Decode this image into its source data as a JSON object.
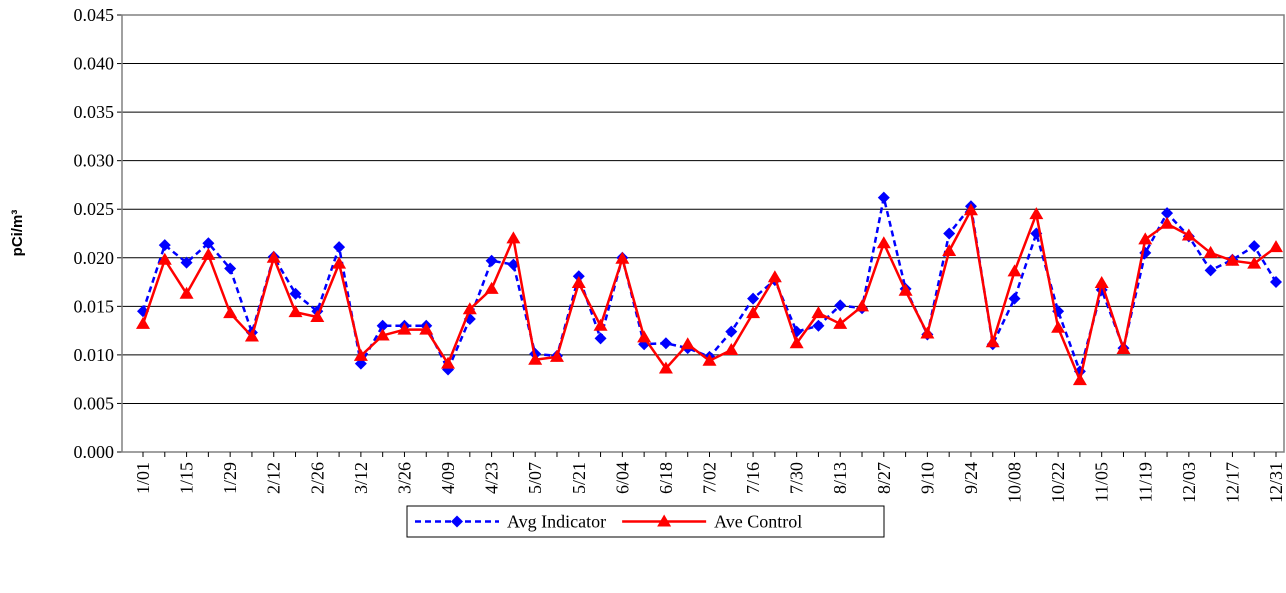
{
  "chart_data": {
    "type": "line",
    "ylabel": "pCi/m³",
    "categories": [
      "1/01",
      null,
      "1/15",
      null,
      "1/29",
      null,
      "2/12",
      null,
      "2/26",
      null,
      "3/12",
      null,
      "3/26",
      null,
      "4/09",
      null,
      "4/23",
      null,
      "5/07",
      null,
      "5/21",
      null,
      "6/04",
      null,
      "6/18",
      null,
      "7/02",
      null,
      "7/16",
      null,
      "7/30",
      null,
      "8/13",
      null,
      "8/27",
      null,
      "9/10",
      null,
      "9/24",
      null,
      "10/08",
      null,
      "10/22",
      null,
      "11/05",
      null,
      "11/19",
      null,
      "12/03",
      null,
      "12/17",
      null,
      "12/31"
    ],
    "series": [
      {
        "name": "Avg Indicator",
        "color": "#0000ff",
        "dashed": true,
        "marker": "diamond",
        "values": [
          0.0145,
          0.0213,
          0.0195,
          0.0215,
          0.0189,
          0.0123,
          0.0201,
          0.0163,
          0.0145,
          0.0211,
          0.0091,
          0.013,
          0.013,
          0.013,
          0.0085,
          0.0137,
          0.0197,
          0.0193,
          0.0101,
          0.0099,
          0.0181,
          0.0117,
          0.02,
          0.0111,
          0.0112,
          0.0107,
          0.0098,
          0.0124,
          0.0158,
          0.0177,
          0.0124,
          0.013,
          0.0151,
          0.0148,
          0.0262,
          0.0168,
          0.0121,
          0.0225,
          0.0253,
          0.0111,
          0.0158,
          0.0225,
          0.0145,
          0.0083,
          0.0167,
          0.0107,
          0.0205,
          0.0246,
          0.0222,
          0.0187,
          0.0198,
          0.0212,
          0.0175
        ]
      },
      {
        "name": "Ave Control",
        "color": "#ff0000",
        "dashed": false,
        "marker": "triangle",
        "values": [
          0.0132,
          0.0198,
          0.0163,
          0.0203,
          0.0143,
          0.0119,
          0.02,
          0.0144,
          0.0139,
          0.0194,
          0.0099,
          0.012,
          0.0126,
          0.0126,
          0.0091,
          0.0147,
          0.0168,
          0.022,
          0.0095,
          0.0098,
          0.0174,
          0.013,
          0.0199,
          0.0118,
          0.0086,
          0.0111,
          0.0094,
          0.0105,
          0.0143,
          0.018,
          0.0112,
          0.0143,
          0.0132,
          0.015,
          0.0215,
          0.0166,
          0.0122,
          0.0207,
          0.0249,
          0.0113,
          0.0186,
          0.0245,
          0.0128,
          0.0074,
          0.0174,
          0.0106,
          0.0219,
          0.0235,
          0.0223,
          0.0205,
          0.0197,
          0.0194,
          0.0211
        ]
      }
    ],
    "ylim": [
      0,
      0.045
    ],
    "yticks": [
      {
        "value": 0,
        "label": "0.000"
      },
      {
        "value": 0.005,
        "label": "0.005"
      },
      {
        "value": 0.01,
        "label": "0.010"
      },
      {
        "value": 0.015,
        "label": "0.015"
      },
      {
        "value": 0.02,
        "label": "0.020"
      },
      {
        "value": 0.025,
        "label": "0.025"
      },
      {
        "value": 0.03,
        "label": "0.030"
      },
      {
        "value": 0.035,
        "label": "0.035"
      },
      {
        "value": 0.04,
        "label": "0.040"
      },
      {
        "value": 0.045,
        "label": "0.045"
      }
    ],
    "grid": true,
    "legend": "bottom"
  }
}
